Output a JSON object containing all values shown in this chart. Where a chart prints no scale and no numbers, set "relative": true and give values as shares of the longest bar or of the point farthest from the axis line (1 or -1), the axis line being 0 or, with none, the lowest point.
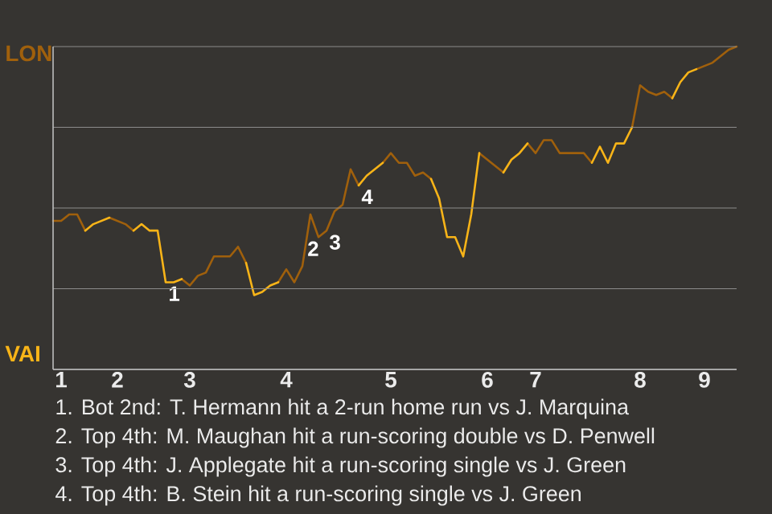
{
  "chart_data": {
    "type": "line",
    "relative": true,
    "categories": [
      null,
      "1",
      null,
      null,
      null,
      null,
      null,
      null,
      "2",
      null,
      null,
      null,
      null,
      null,
      null,
      null,
      null,
      "3",
      null,
      null,
      null,
      null,
      null,
      null,
      null,
      null,
      null,
      null,
      null,
      "4",
      null,
      null,
      null,
      null,
      null,
      null,
      null,
      null,
      null,
      null,
      null,
      null,
      "5",
      null,
      null,
      null,
      null,
      null,
      null,
      null,
      null,
      null,
      null,
      null,
      "6",
      null,
      null,
      null,
      null,
      null,
      "7",
      null,
      null,
      null,
      null,
      null,
      null,
      null,
      null,
      null,
      null,
      null,
      null,
      "8",
      null,
      null,
      null,
      null,
      null,
      null,
      null,
      "9",
      null,
      null,
      null,
      null
    ],
    "series": [
      {
        "name": "LON",
        "color": "#a0600c",
        "values": [
          0.46,
          0.46,
          0.48,
          0.48,
          0.43,
          null,
          null,
          0.47,
          0.46,
          0.45,
          0.43,
          null,
          null,
          null,
          null,
          null,
          0.28,
          0.26,
          0.29,
          0.3,
          0.35,
          0.35,
          0.35,
          0.38,
          0.33,
          null,
          null,
          null,
          0.27,
          0.31,
          0.27,
          0.32,
          0.48,
          0.41,
          0.43,
          0.49,
          0.51,
          0.62,
          0.57,
          null,
          null,
          0.64,
          0.67,
          0.64,
          0.64,
          0.6,
          0.61,
          0.59,
          null,
          null,
          null,
          null,
          null,
          0.67,
          0.65,
          0.63,
          0.61,
          null,
          null,
          0.7,
          0.67,
          0.71,
          0.71,
          0.67,
          0.67,
          0.67,
          0.67,
          0.64,
          null,
          null,
          null,
          null,
          0.75,
          0.88,
          0.86,
          0.85,
          0.86,
          0.84,
          null,
          null,
          0.93,
          0.94,
          0.95,
          0.97,
          0.99,
          1.0
        ]
      },
      {
        "name": "VAI",
        "color": "#f8b418",
        "values": [
          null,
          null,
          null,
          null,
          0.43,
          0.45,
          0.46,
          0.47,
          null,
          null,
          0.43,
          0.45,
          0.43,
          0.43,
          0.27,
          0.27,
          0.28,
          null,
          null,
          null,
          null,
          null,
          null,
          null,
          0.33,
          0.23,
          0.24,
          0.26,
          0.27,
          null,
          null,
          null,
          null,
          null,
          null,
          null,
          null,
          null,
          0.57,
          0.6,
          0.62,
          0.64,
          null,
          null,
          null,
          null,
          null,
          0.59,
          0.53,
          0.41,
          0.41,
          0.35,
          0.48,
          0.67,
          null,
          null,
          0.61,
          0.65,
          0.67,
          0.7,
          null,
          null,
          null,
          null,
          null,
          null,
          null,
          0.64,
          0.69,
          0.64,
          0.7,
          0.7,
          0.75,
          null,
          null,
          null,
          null,
          0.84,
          0.89,
          0.92,
          0.93,
          null,
          null,
          null,
          null,
          null
        ]
      }
    ],
    "grid": "y",
    "annotations": [
      {
        "text": "1",
        "y": 0.27
      },
      {
        "text": "2",
        "y": 0.41
      },
      {
        "text": "3",
        "y": 0.43
      },
      {
        "text": "4",
        "y": 0.57
      },
      "1. Bot 2nd: T. Hermann hit a 2-run home run vs J. Marquina",
      "2. Top 4th: M. Maughan hit a run-scoring double vs D. Penwell",
      "3. Top 4th: J. Applegate hit a run-scoring single vs J. Green",
      "4. Top 4th: B. Stein hit a run-scoring single vs J. Green"
    ]
  }
}
